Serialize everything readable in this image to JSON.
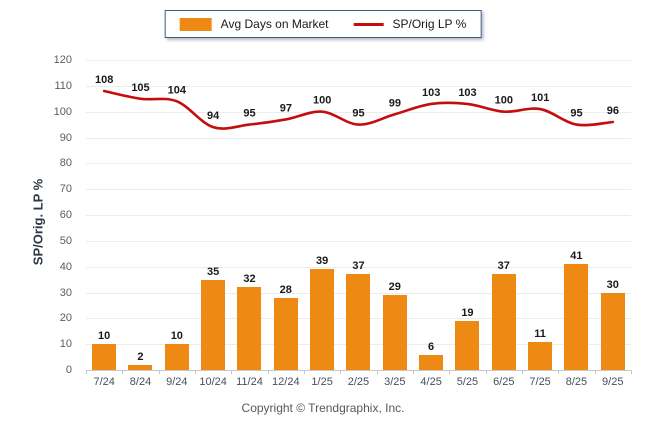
{
  "legend": {
    "items": [
      {
        "label": "Avg Days on Market",
        "swatch": "bar",
        "color": "#ee8a14"
      },
      {
        "label": "SP/Orig LP %",
        "swatch": "line",
        "color": "#c40d0d"
      }
    ]
  },
  "footer": {
    "text": "Copyright © Trendgraphix, Inc."
  },
  "chart_data": {
    "type": "bar",
    "title": "",
    "categories": [
      "7/24",
      "8/24",
      "9/24",
      "10/24",
      "11/24",
      "12/24",
      "1/25",
      "2/25",
      "3/25",
      "4/25",
      "5/25",
      "6/25",
      "7/25",
      "8/25",
      "9/25"
    ],
    "series": [
      {
        "name": "Avg Days on Market",
        "type": "bar",
        "color": "#ee8a14",
        "values": [
          10,
          2,
          10,
          35,
          32,
          28,
          39,
          37,
          29,
          6,
          19,
          37,
          11,
          41,
          30
        ]
      },
      {
        "name": "SP/Orig LP %",
        "type": "line",
        "color": "#c40d0d",
        "values": [
          108,
          105,
          104,
          94,
          95,
          97,
          100,
          95,
          99,
          103,
          103,
          100,
          101,
          95,
          96
        ]
      }
    ],
    "xlabel": "",
    "ylabel": "SP/Orig. LP %",
    "ylim": [
      0,
      120
    ],
    "yticks": [
      0,
      10,
      20,
      30,
      40,
      50,
      60,
      70,
      80,
      90,
      100,
      110,
      120
    ],
    "grid": true,
    "legend_position": "top-center",
    "value_labels": true,
    "colors": {
      "grid": "#ececec",
      "axis": "#c9c9c9",
      "tick_text": "#5c5c5c",
      "value_text": "#1a1a1a",
      "legend_border": "#3e5c7e"
    }
  }
}
